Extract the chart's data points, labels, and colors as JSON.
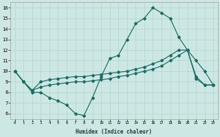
{
  "xlabel": "Humidex (Indice chaleur)",
  "bg_color": "#cde8e4",
  "grid_color": "#b8d8d4",
  "line_color": "#1e6b65",
  "line1_y": [
    10,
    9,
    8,
    8,
    7.5,
    7.2,
    6.8,
    6.0,
    5.8,
    7.5,
    9.5,
    11.2,
    11.5,
    13.0,
    14.5,
    15.0,
    16.0,
    15.5,
    15.0,
    13.2,
    12.0,
    11.0,
    10.0,
    8.7
  ],
  "line2_y": [
    10,
    9,
    8.2,
    9.0,
    9.2,
    9.3,
    9.4,
    9.5,
    9.5,
    9.6,
    9.7,
    9.8,
    9.9,
    10.0,
    10.2,
    10.4,
    10.7,
    11.0,
    11.5,
    12.0,
    12.0,
    9.5,
    8.7,
    8.7
  ],
  "line3_y": [
    10,
    9,
    8.2,
    8.5,
    8.7,
    8.8,
    8.9,
    9.0,
    9.0,
    9.1,
    9.2,
    9.3,
    9.5,
    9.6,
    9.8,
    10.0,
    10.2,
    10.5,
    11.0,
    11.5,
    12.0,
    9.3,
    8.7,
    8.7
  ],
  "xlim": [
    -0.5,
    23.5
  ],
  "ylim": [
    5.5,
    16.5
  ],
  "yticks": [
    6,
    7,
    8,
    9,
    10,
    11,
    12,
    13,
    14,
    15,
    16
  ],
  "xticks": [
    0,
    1,
    2,
    3,
    4,
    5,
    6,
    7,
    8,
    9,
    10,
    11,
    12,
    13,
    14,
    15,
    16,
    17,
    18,
    19,
    20,
    21,
    22,
    23
  ]
}
